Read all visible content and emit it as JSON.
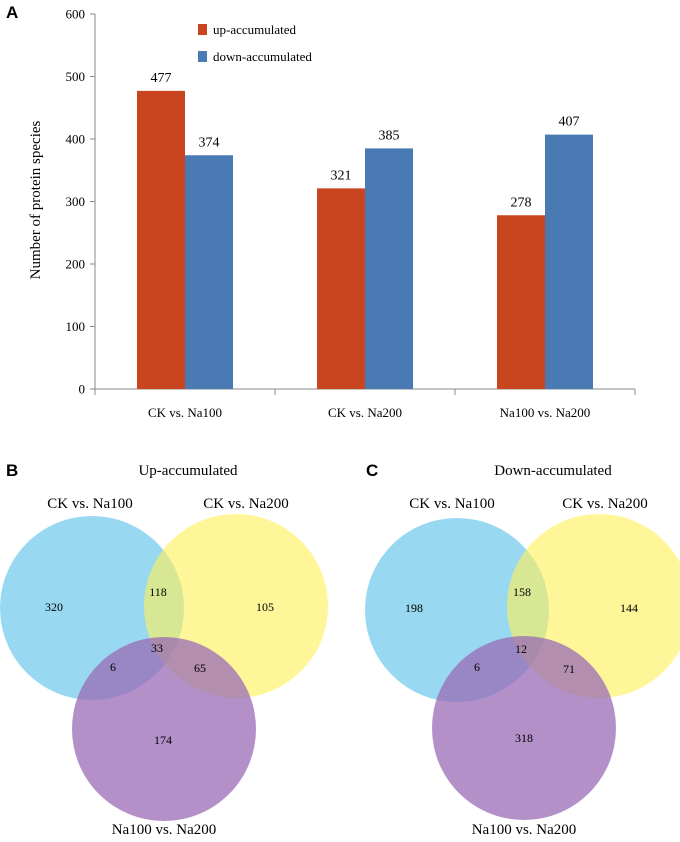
{
  "panels": {
    "a": "A",
    "b": "B",
    "c": "C"
  },
  "chart_data": [
    {
      "type": "bar",
      "title": "",
      "xlabel": "",
      "ylabel": "Number of protein species",
      "ylim": [
        0,
        600
      ],
      "yticks": [
        0,
        100,
        200,
        300,
        400,
        500,
        600
      ],
      "categories": [
        "CK  vs. Na100",
        "CK  vs. Na200",
        "Na100  vs. Na200"
      ],
      "series": [
        {
          "name": "up-accumulated",
          "color": "#C84520",
          "values": [
            477,
            321,
            278
          ]
        },
        {
          "name": "down-accumulated",
          "color": "#4A7AB3",
          "values": [
            374,
            385,
            407
          ]
        }
      ],
      "legend_position": "top-center"
    },
    {
      "type": "venn",
      "title": "Up-accumulated",
      "sets": [
        "CK vs. Na100",
        "CK vs. Na200",
        "Na100 vs. Na200"
      ],
      "colors": [
        "#5BC0E8",
        "#FFF15A",
        "#9A6BB5"
      ],
      "regions": {
        "only_1": 320,
        "only_2": 105,
        "only_3": 174,
        "1_2": 118,
        "1_3": 6,
        "2_3": 65,
        "1_2_3": 33
      }
    },
    {
      "type": "venn",
      "title": "Down-accumulated",
      "sets": [
        "CK vs. Na100",
        "CK vs. Na200",
        "Na100 vs. Na200"
      ],
      "colors": [
        "#5BC0E8",
        "#FFF15A",
        "#9A6BB5"
      ],
      "regions": {
        "only_1": 198,
        "only_2": 144,
        "only_3": 318,
        "1_2": 158,
        "1_3": 6,
        "2_3": 71,
        "1_2_3": 12
      }
    }
  ]
}
